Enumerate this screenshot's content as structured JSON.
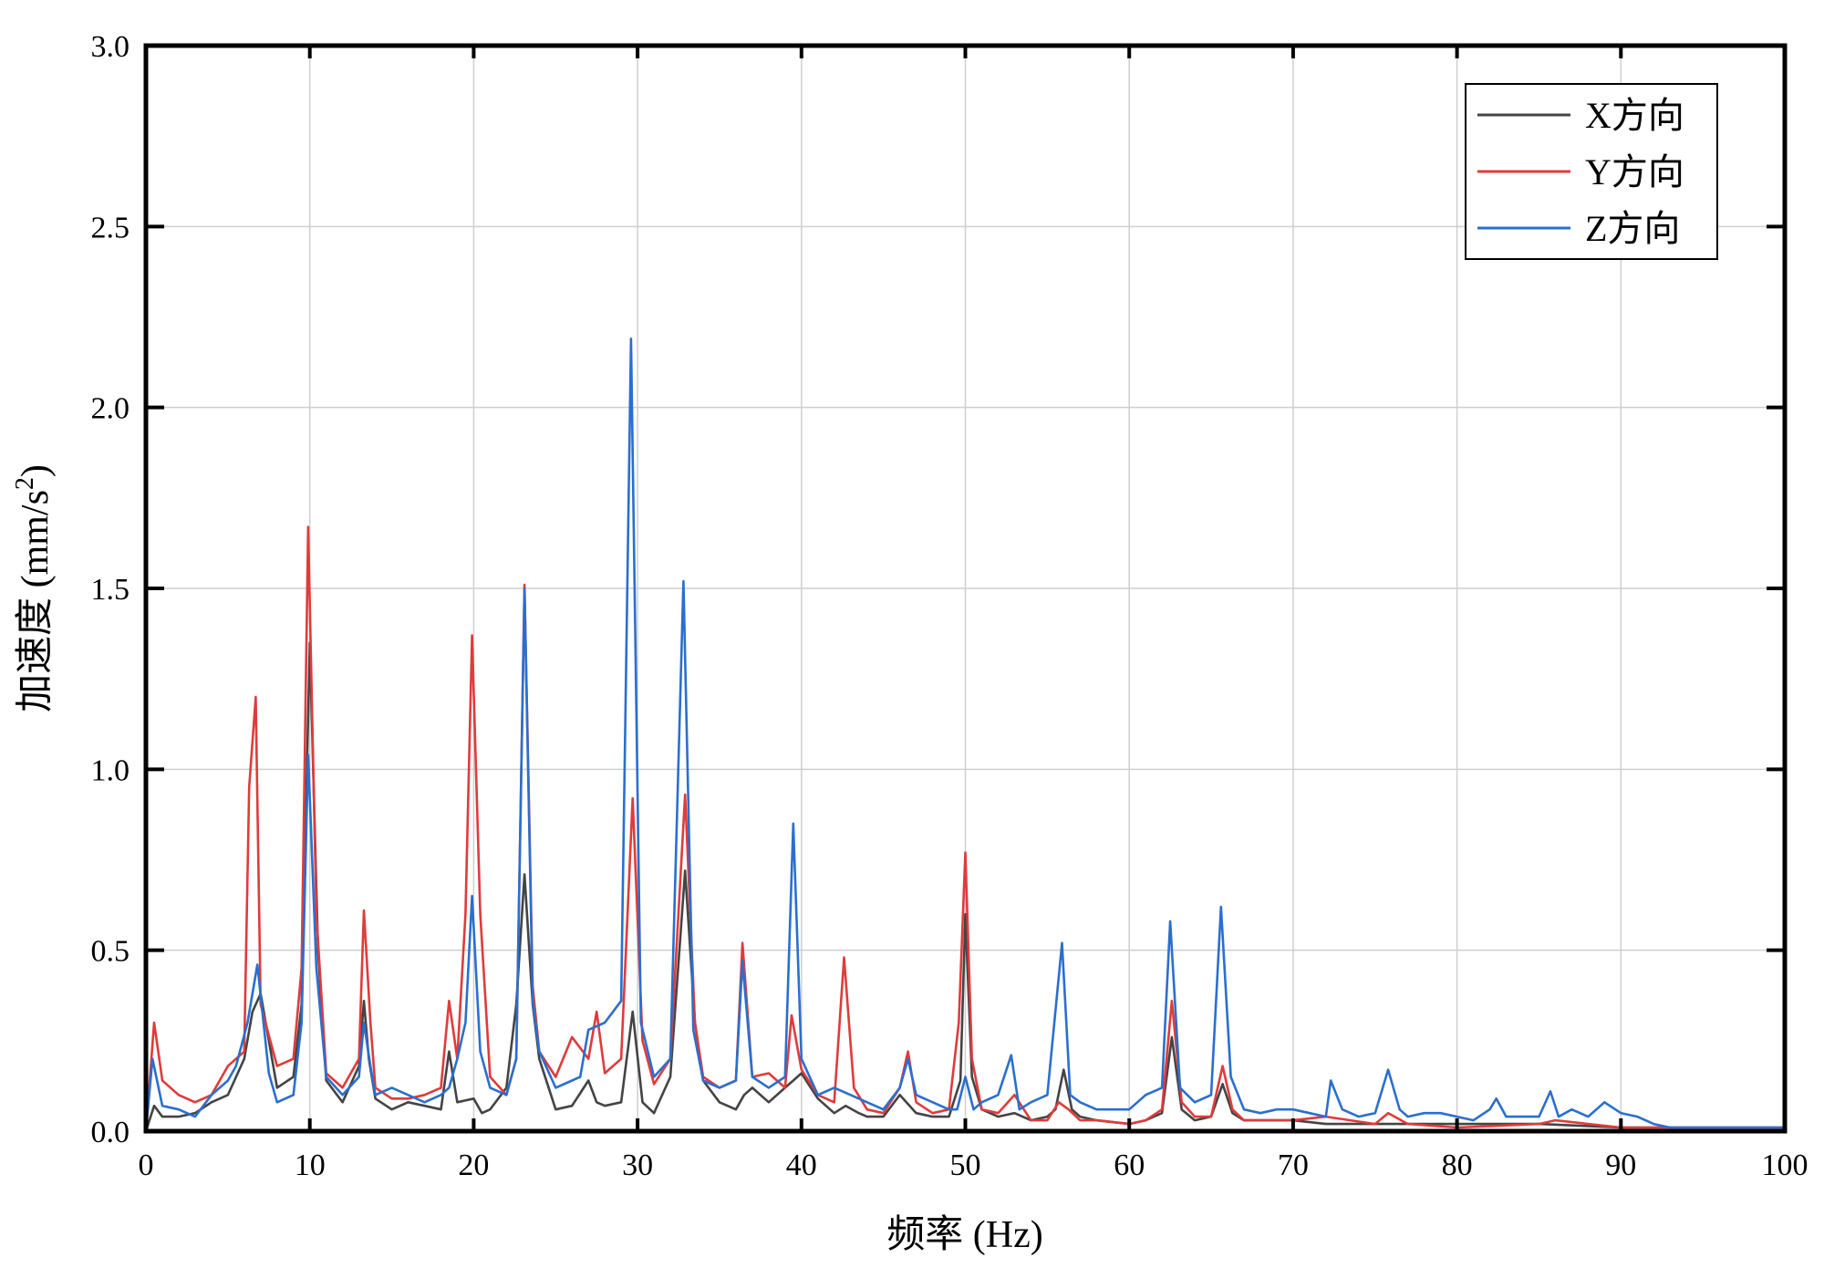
{
  "chart_data": {
    "type": "line",
    "title": "",
    "xlabel": "频率 (Hz)",
    "ylabel": "加速度 (mm/s²)",
    "ylabel_main": "加速度 (mm/s",
    "ylabel_sup": "2",
    "ylabel_end": ")",
    "xlim": [
      0,
      100
    ],
    "ylim": [
      0,
      3.0
    ],
    "x_ticks": [
      0,
      10,
      20,
      30,
      40,
      50,
      60,
      70,
      80,
      90,
      100
    ],
    "x_tick_labels": [
      "0",
      "10",
      "20",
      "30",
      "40",
      "50",
      "60",
      "70",
      "80",
      "90",
      "100"
    ],
    "y_ticks": [
      0,
      0.5,
      1.0,
      1.5,
      2.0,
      2.5,
      3.0
    ],
    "y_tick_labels": [
      "0.0",
      "0.5",
      "1.0",
      "1.5",
      "2.0",
      "2.5",
      "3.0"
    ],
    "grid": true,
    "legend_position": "top-right",
    "series": [
      {
        "name": "X方向",
        "color": "#444444",
        "x": [
          0,
          0.5,
          1,
          2,
          3,
          4,
          5,
          6,
          6.5,
          7,
          8,
          9,
          9.5,
          10,
          10.5,
          11,
          12,
          13,
          13.3,
          13.6,
          14,
          15,
          16,
          17,
          18,
          18.5,
          19,
          20,
          20.5,
          21,
          22,
          22.6,
          23.1,
          23.6,
          24,
          25,
          26,
          27,
          27.5,
          28,
          29,
          29.7,
          30.3,
          31,
          32,
          32.9,
          33.5,
          34,
          35,
          36,
          36.5,
          37,
          38,
          39,
          39.5,
          40,
          41,
          42,
          42.7,
          43.5,
          44,
          45,
          46,
          47,
          48,
          49,
          49.7,
          50,
          50.4,
          51,
          52,
          53,
          54,
          55,
          55.5,
          56,
          56.5,
          57,
          58,
          60,
          61,
          62,
          62.6,
          63.2,
          64,
          65,
          65.7,
          66.3,
          67,
          70,
          72,
          75,
          80,
          85,
          90,
          95,
          100
        ],
        "y": [
          0.0,
          0.07,
          0.04,
          0.04,
          0.05,
          0.08,
          0.1,
          0.2,
          0.33,
          0.38,
          0.12,
          0.15,
          0.35,
          1.35,
          0.5,
          0.14,
          0.08,
          0.18,
          0.36,
          0.2,
          0.09,
          0.06,
          0.08,
          0.07,
          0.06,
          0.22,
          0.08,
          0.09,
          0.05,
          0.06,
          0.12,
          0.35,
          0.71,
          0.35,
          0.2,
          0.06,
          0.07,
          0.14,
          0.08,
          0.07,
          0.08,
          0.33,
          0.08,
          0.05,
          0.15,
          0.72,
          0.3,
          0.14,
          0.08,
          0.06,
          0.1,
          0.12,
          0.08,
          0.12,
          0.14,
          0.16,
          0.09,
          0.05,
          0.07,
          0.05,
          0.04,
          0.04,
          0.1,
          0.05,
          0.04,
          0.04,
          0.14,
          0.6,
          0.15,
          0.06,
          0.04,
          0.05,
          0.03,
          0.04,
          0.06,
          0.17,
          0.06,
          0.04,
          0.03,
          0.02,
          0.03,
          0.05,
          0.26,
          0.06,
          0.03,
          0.04,
          0.13,
          0.05,
          0.03,
          0.03,
          0.02,
          0.02,
          0.02,
          0.02,
          0.01,
          0.01,
          0.01
        ]
      },
      {
        "name": "Y方向",
        "color": "#e03b3b",
        "x": [
          0,
          0.5,
          1,
          2,
          3,
          4,
          5,
          6,
          6.3,
          6.7,
          7,
          8,
          9,
          9.5,
          9.9,
          10.4,
          11,
          12,
          13,
          13.3,
          13.7,
          14,
          15,
          16,
          17,
          18,
          18.5,
          19,
          19.5,
          19.9,
          20.4,
          21,
          22,
          22.6,
          23.1,
          23.6,
          24,
          25,
          26,
          27,
          27.5,
          28,
          29,
          29.7,
          30.3,
          31,
          32,
          32.9,
          33.5,
          34,
          35,
          36,
          36.4,
          37,
          38,
          39,
          39.4,
          40,
          41,
          42,
          42.6,
          43.2,
          44,
          45,
          46,
          46.5,
          47,
          48,
          49,
          49.6,
          50,
          50.4,
          51,
          52,
          53,
          54,
          55,
          55.7,
          56.3,
          57,
          58,
          60,
          61,
          62,
          62.6,
          63.2,
          64,
          65,
          65.7,
          66.3,
          67,
          70,
          72,
          75,
          75.8,
          77,
          80,
          85,
          86,
          90,
          95,
          100
        ],
        "y": [
          0.0,
          0.3,
          0.14,
          0.1,
          0.08,
          0.1,
          0.18,
          0.22,
          0.95,
          1.2,
          0.35,
          0.18,
          0.2,
          0.45,
          1.67,
          0.6,
          0.16,
          0.12,
          0.2,
          0.61,
          0.3,
          0.12,
          0.09,
          0.09,
          0.1,
          0.12,
          0.36,
          0.2,
          0.6,
          1.37,
          0.6,
          0.15,
          0.1,
          0.2,
          1.51,
          0.4,
          0.22,
          0.15,
          0.26,
          0.2,
          0.33,
          0.16,
          0.2,
          0.92,
          0.25,
          0.13,
          0.2,
          0.93,
          0.3,
          0.15,
          0.12,
          0.14,
          0.52,
          0.15,
          0.16,
          0.12,
          0.32,
          0.17,
          0.1,
          0.08,
          0.48,
          0.12,
          0.06,
          0.05,
          0.12,
          0.22,
          0.08,
          0.05,
          0.06,
          0.3,
          0.77,
          0.2,
          0.06,
          0.05,
          0.1,
          0.03,
          0.03,
          0.08,
          0.06,
          0.03,
          0.03,
          0.02,
          0.03,
          0.06,
          0.36,
          0.08,
          0.04,
          0.04,
          0.18,
          0.06,
          0.03,
          0.03,
          0.04,
          0.02,
          0.05,
          0.02,
          0.01,
          0.02,
          0.03,
          0.01,
          0.01,
          0.01
        ]
      },
      {
        "name": "Z方向",
        "color": "#2a6fcf",
        "x": [
          0,
          0.4,
          1,
          2,
          3,
          4,
          5,
          5.5,
          6.2,
          6.8,
          7.5,
          8,
          9,
          9.5,
          9.9,
          10.4,
          11,
          12,
          13,
          13.3,
          13.7,
          14,
          15,
          16,
          17,
          18,
          18.5,
          19,
          19.5,
          19.9,
          20.4,
          21,
          22,
          22.6,
          23.1,
          23.6,
          24,
          25,
          26,
          26.5,
          27,
          28,
          29,
          29.6,
          30.2,
          31,
          32,
          32.8,
          33.4,
          34,
          35,
          36,
          36.4,
          37,
          38,
          39,
          39.5,
          40,
          41,
          42,
          43,
          44,
          45,
          46,
          46.5,
          47,
          48,
          49,
          49.5,
          50,
          50.5,
          51,
          52,
          52.8,
          53.3,
          54,
          55,
          55.9,
          56.4,
          57,
          58,
          60,
          61,
          62,
          62.5,
          63.1,
          64,
          65,
          65.6,
          66.2,
          67,
          68,
          69,
          70,
          71,
          72,
          72.3,
          73,
          74,
          75,
          75.8,
          76.5,
          77,
          78,
          79,
          80,
          81,
          82,
          82.4,
          83,
          84,
          85,
          85.7,
          86.2,
          87,
          88,
          89,
          90,
          91,
          92,
          93,
          95,
          100
        ],
        "y": [
          0.0,
          0.2,
          0.07,
          0.06,
          0.04,
          0.1,
          0.14,
          0.18,
          0.3,
          0.46,
          0.16,
          0.08,
          0.1,
          0.3,
          1.04,
          0.45,
          0.15,
          0.1,
          0.15,
          0.3,
          0.18,
          0.1,
          0.12,
          0.1,
          0.08,
          0.1,
          0.12,
          0.2,
          0.3,
          0.65,
          0.22,
          0.12,
          0.1,
          0.2,
          1.5,
          0.36,
          0.22,
          0.12,
          0.14,
          0.15,
          0.28,
          0.3,
          0.36,
          2.19,
          0.3,
          0.15,
          0.2,
          1.52,
          0.28,
          0.14,
          0.12,
          0.14,
          0.47,
          0.15,
          0.12,
          0.15,
          0.85,
          0.2,
          0.1,
          0.12,
          0.1,
          0.08,
          0.06,
          0.12,
          0.2,
          0.1,
          0.08,
          0.06,
          0.06,
          0.15,
          0.06,
          0.08,
          0.1,
          0.21,
          0.06,
          0.08,
          0.1,
          0.52,
          0.1,
          0.08,
          0.06,
          0.06,
          0.1,
          0.12,
          0.58,
          0.12,
          0.08,
          0.1,
          0.62,
          0.15,
          0.06,
          0.05,
          0.06,
          0.06,
          0.05,
          0.04,
          0.14,
          0.06,
          0.04,
          0.05,
          0.17,
          0.06,
          0.04,
          0.05,
          0.05,
          0.04,
          0.03,
          0.06,
          0.09,
          0.04,
          0.04,
          0.04,
          0.11,
          0.04,
          0.06,
          0.04,
          0.08,
          0.05,
          0.04,
          0.02,
          0.01,
          0.01,
          0.01
        ]
      }
    ]
  }
}
